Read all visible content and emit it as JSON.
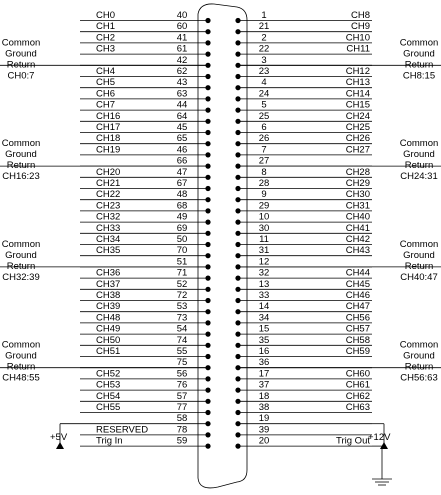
{
  "connector": {
    "left_rows": [
      {
        "pin": "40",
        "signal": "CH0"
      },
      {
        "pin": "60",
        "signal": "CH1"
      },
      {
        "pin": "41",
        "signal": "CH2"
      },
      {
        "pin": "61",
        "signal": "CH3"
      },
      {
        "pin": "42",
        "signal": ""
      },
      {
        "pin": "62",
        "signal": "CH4"
      },
      {
        "pin": "43",
        "signal": "CH5"
      },
      {
        "pin": "63",
        "signal": "CH6"
      },
      {
        "pin": "44",
        "signal": "CH7"
      },
      {
        "pin": "64",
        "signal": "CH16"
      },
      {
        "pin": "45",
        "signal": "CH17"
      },
      {
        "pin": "65",
        "signal": "CH18"
      },
      {
        "pin": "46",
        "signal": "CH19"
      },
      {
        "pin": "66",
        "signal": ""
      },
      {
        "pin": "47",
        "signal": "CH20"
      },
      {
        "pin": "67",
        "signal": "CH21"
      },
      {
        "pin": "48",
        "signal": "CH22"
      },
      {
        "pin": "68",
        "signal": "CH23"
      },
      {
        "pin": "49",
        "signal": "CH32"
      },
      {
        "pin": "69",
        "signal": "CH33"
      },
      {
        "pin": "50",
        "signal": "CH34"
      },
      {
        "pin": "70",
        "signal": "CH35"
      },
      {
        "pin": "51",
        "signal": ""
      },
      {
        "pin": "71",
        "signal": "CH36"
      },
      {
        "pin": "52",
        "signal": "CH37"
      },
      {
        "pin": "72",
        "signal": "CH38"
      },
      {
        "pin": "53",
        "signal": "CH39"
      },
      {
        "pin": "73",
        "signal": "CH48"
      },
      {
        "pin": "54",
        "signal": "CH49"
      },
      {
        "pin": "74",
        "signal": "CH50"
      },
      {
        "pin": "55",
        "signal": "CH51"
      },
      {
        "pin": "75",
        "signal": ""
      },
      {
        "pin": "56",
        "signal": "CH52"
      },
      {
        "pin": "76",
        "signal": "CH53"
      },
      {
        "pin": "57",
        "signal": "CH54"
      },
      {
        "pin": "77",
        "signal": "CH55"
      },
      {
        "pin": "58",
        "signal": ""
      },
      {
        "pin": "78",
        "signal": "RESERVED"
      },
      {
        "pin": "59",
        "signal": "Trig In"
      }
    ],
    "right_rows": [
      {
        "pin": "1",
        "signal": "CH8"
      },
      {
        "pin": "21",
        "signal": "CH9"
      },
      {
        "pin": "2",
        "signal": "CH10"
      },
      {
        "pin": "22",
        "signal": "CH11"
      },
      {
        "pin": "3",
        "signal": ""
      },
      {
        "pin": "23",
        "signal": "CH12"
      },
      {
        "pin": "4",
        "signal": "CH13"
      },
      {
        "pin": "24",
        "signal": "CH14"
      },
      {
        "pin": "5",
        "signal": "CH15"
      },
      {
        "pin": "25",
        "signal": "CH24"
      },
      {
        "pin": "6",
        "signal": "CH25"
      },
      {
        "pin": "26",
        "signal": "CH26"
      },
      {
        "pin": "7",
        "signal": "CH27"
      },
      {
        "pin": "27",
        "signal": ""
      },
      {
        "pin": "8",
        "signal": "CH28"
      },
      {
        "pin": "28",
        "signal": "CH29"
      },
      {
        "pin": "9",
        "signal": "CH30"
      },
      {
        "pin": "29",
        "signal": "CH31"
      },
      {
        "pin": "10",
        "signal": "CH40"
      },
      {
        "pin": "30",
        "signal": "CH41"
      },
      {
        "pin": "11",
        "signal": "CH42"
      },
      {
        "pin": "31",
        "signal": "CH43"
      },
      {
        "pin": "12",
        "signal": ""
      },
      {
        "pin": "32",
        "signal": "CH44"
      },
      {
        "pin": "13",
        "signal": "CH45"
      },
      {
        "pin": "33",
        "signal": "CH46"
      },
      {
        "pin": "14",
        "signal": "CH47"
      },
      {
        "pin": "34",
        "signal": "CH56"
      },
      {
        "pin": "15",
        "signal": "CH57"
      },
      {
        "pin": "35",
        "signal": "CH58"
      },
      {
        "pin": "16",
        "signal": "CH59"
      },
      {
        "pin": "36",
        "signal": ""
      },
      {
        "pin": "17",
        "signal": "CH60"
      },
      {
        "pin": "37",
        "signal": "CH61"
      },
      {
        "pin": "18",
        "signal": "CH62"
      },
      {
        "pin": "38",
        "signal": "CH63"
      },
      {
        "pin": "19",
        "signal": ""
      },
      {
        "pin": "39",
        "signal": ""
      },
      {
        "pin": "20",
        "signal": "Trig Out"
      }
    ],
    "left_returns": [
      {
        "lines": [
          "Common",
          "Ground",
          "Return",
          "CH0:7"
        ]
      },
      {
        "lines": [
          "Common",
          "Ground",
          "Return",
          "CH16:23"
        ]
      },
      {
        "lines": [
          "Common",
          "Ground",
          "Return",
          "CH32:39"
        ]
      },
      {
        "lines": [
          "Common",
          "Ground",
          "Return",
          "CH48:55"
        ]
      }
    ],
    "right_returns": [
      {
        "lines": [
          "Common",
          "Ground",
          "Return",
          "CH8:15"
        ]
      },
      {
        "lines": [
          "Common",
          "Ground",
          "Return",
          "CH24:31"
        ]
      },
      {
        "lines": [
          "Common",
          "Ground",
          "Return",
          "CH40:47"
        ]
      },
      {
        "lines": [
          "Common",
          "Ground",
          "Return",
          "CH56:63"
        ]
      }
    ],
    "supply_left": "+5V",
    "supply_right": "+12V"
  }
}
